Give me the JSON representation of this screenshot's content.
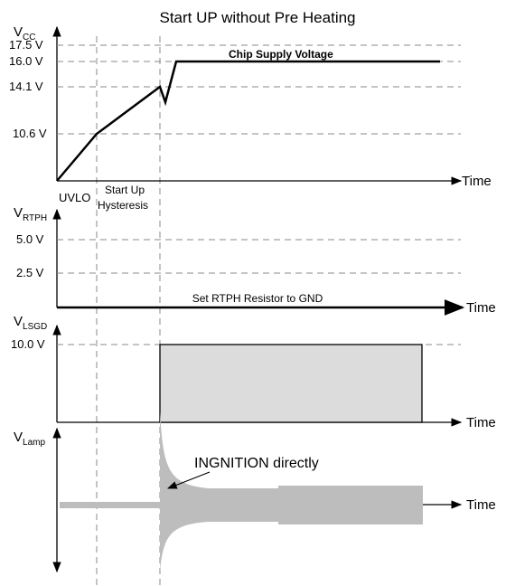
{
  "title": "Start UP without Pre Heating",
  "panels": [
    {
      "axis": "V",
      "sub": "CC",
      "levels": [
        "17.5 V",
        "16.0 V",
        "14.1 V",
        "10.6 V"
      ],
      "note": "Chip Supply  Voltage",
      "time": "Time",
      "markers": [
        "UVLO",
        "Start Up",
        "Hysteresis"
      ]
    },
    {
      "axis": "V",
      "sub": "RTPH",
      "levels": [
        "5.0 V",
        "2.5 V"
      ],
      "note": "Set RTPH Resistor to GND",
      "time": "Time"
    },
    {
      "axis": "V",
      "sub": "LSGD",
      "levels": [
        "10.0 V"
      ],
      "time": "Time"
    },
    {
      "axis": "V",
      "sub": "Lamp",
      "note": "INGNITION directly",
      "time": "Time"
    }
  ]
}
